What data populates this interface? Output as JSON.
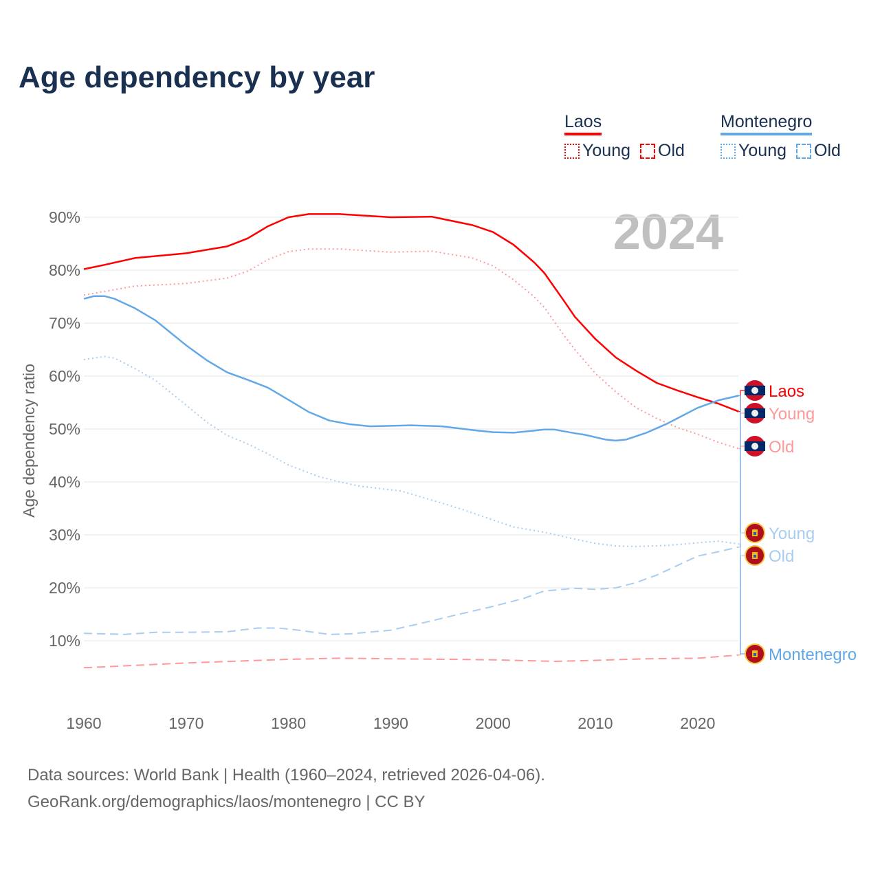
{
  "title": "Age dependency by year",
  "legend": {
    "groups": [
      {
        "name": "Laos",
        "color": "#ff0000",
        "items": [
          {
            "label": "Young",
            "style": "dotted",
            "color": "#ff0000"
          },
          {
            "label": "Old",
            "style": "dashed",
            "color": "#ff0000"
          }
        ]
      },
      {
        "name": "Montenegro",
        "color": "#62a8e8",
        "items": [
          {
            "label": "Young",
            "style": "dotted",
            "color": "#62a8e8"
          },
          {
            "label": "Old",
            "style": "dashed",
            "color": "#62a8e8"
          }
        ]
      }
    ]
  },
  "footer": {
    "line1": "Data sources: World Bank | Health (1960–2024, retrieved 2026-04-06).",
    "line2": "GeoRank.org/demographics/laos/montenegro | CC BY"
  },
  "chart_data": {
    "type": "line",
    "title": "Age dependency by year",
    "year_watermark": "2024",
    "xlabel": "",
    "ylabel": "Age dependency ratio",
    "xlim": [
      1960,
      2024
    ],
    "ylim": [
      0,
      95
    ],
    "x_ticks": [
      "1960",
      "1970",
      "1980",
      "1990",
      "2000",
      "2010",
      "2020"
    ],
    "y_ticks": [
      "10%",
      "20%",
      "30%",
      "40%",
      "50%",
      "60%",
      "70%",
      "80%",
      "90%"
    ],
    "grid": true,
    "series": [
      {
        "name": "Laos",
        "end_label": "Laos",
        "flag": "laos",
        "color": "#ff0000",
        "style": "solid",
        "x": [
          1960,
          1962,
          1965,
          1970,
          1974,
          1976,
          1978,
          1980,
          1982,
          1985,
          1990,
          1994,
          1998,
          2000,
          2002,
          2004,
          2005,
          2007,
          2008,
          2010,
          2012,
          2014,
          2016,
          2018,
          2020,
          2022,
          2024
        ],
        "y": [
          80.2,
          81,
          82.3,
          83.2,
          84.5,
          86,
          88.3,
          90,
          90.6,
          90.6,
          90.0,
          90.1,
          88.5,
          87.2,
          84.8,
          81.5,
          79.5,
          74,
          71.2,
          67,
          63.5,
          61,
          58.7,
          57.3,
          56,
          54.8,
          53.3
        ]
      },
      {
        "name": "Laos Young",
        "end_label": "Young",
        "flag": "laos",
        "color": "#ff9999",
        "style": "dotted",
        "x": [
          1960,
          1965,
          1970,
          1974,
          1976,
          1978,
          1980,
          1982,
          1985,
          1990,
          1994,
          1998,
          2000,
          2002,
          2004,
          2005,
          2007,
          2008,
          2010,
          2012,
          2014,
          2016,
          2018,
          2020,
          2022,
          2024
        ],
        "y": [
          75.3,
          77,
          77.5,
          78.5,
          79.8,
          82,
          83.5,
          84,
          84,
          83.4,
          83.6,
          82.3,
          80.8,
          78.2,
          75,
          73,
          67.5,
          65,
          60.5,
          57,
          54,
          52,
          50.3,
          49,
          47.5,
          46.3
        ]
      },
      {
        "name": "Laos Old",
        "end_label": "Old",
        "flag": "laos",
        "color": "#ff9999",
        "style": "dashed",
        "x": [
          1960,
          1970,
          1980,
          1985,
          1990,
          2000,
          2006,
          2010,
          2015,
          2020,
          2024
        ],
        "y": [
          4.9,
          5.8,
          6.5,
          6.7,
          6.6,
          6.4,
          6.1,
          6.3,
          6.6,
          6.7,
          7.3
        ]
      },
      {
        "name": "Montenegro",
        "end_label": "Montenegro",
        "flag": "montenegro",
        "color": "#62a8e8",
        "style": "solid",
        "x": [
          1960,
          1961,
          1962,
          1963,
          1965,
          1967,
          1970,
          1972,
          1974,
          1976,
          1978,
          1980,
          1982,
          1984,
          1986,
          1988,
          1990,
          1992,
          1995,
          1998,
          2000,
          2002,
          2005,
          2006,
          2008,
          2009,
          2011,
          2012,
          2013,
          2015,
          2017,
          2018,
          2020,
          2022,
          2024
        ],
        "y": [
          74.6,
          75.1,
          75.1,
          74.6,
          72.8,
          70.5,
          65.8,
          63,
          60.7,
          59.3,
          57.8,
          55.5,
          53.2,
          51.6,
          50.9,
          50.5,
          50.6,
          50.7,
          50.5,
          49.8,
          49.4,
          49.3,
          49.9,
          49.9,
          49.2,
          48.9,
          48,
          47.8,
          48,
          49.3,
          51,
          52,
          54,
          55.4,
          56.3
        ]
      },
      {
        "name": "Montenegro Young",
        "end_label": "Young",
        "flag": "montenegro",
        "color": "#a9cdf0",
        "style": "dotted",
        "x": [
          1960,
          1962,
          1963,
          1965,
          1967,
          1970,
          1972,
          1974,
          1976,
          1978,
          1980,
          1983,
          1985,
          1987,
          1990,
          1991,
          1995,
          1997,
          2000,
          2002,
          2005,
          2008,
          2010,
          2012,
          2014,
          2017,
          2020,
          2022,
          2024
        ],
        "y": [
          63.1,
          63.7,
          63.4,
          61.4,
          59.2,
          54.5,
          51.3,
          48.8,
          47.2,
          45.3,
          43.2,
          41,
          40,
          39.2,
          38.5,
          38.3,
          36,
          34.8,
          32.8,
          31.5,
          30.5,
          29.2,
          28.4,
          27.9,
          27.8,
          28,
          28.5,
          28.8,
          28.3
        ]
      },
      {
        "name": "Montenegro Old",
        "end_label": "Old",
        "flag": "montenegro",
        "color": "#a9cdf0",
        "style": "dashed",
        "x": [
          1960,
          1964,
          1967,
          1970,
          1974,
          1977,
          1979,
          1981,
          1984,
          1986,
          1990,
          1993,
          1996,
          2000,
          2003,
          2005,
          2008,
          2010,
          2012,
          2014,
          2016,
          2018,
          2020,
          2022,
          2024
        ],
        "y": [
          11.4,
          11.2,
          11.6,
          11.6,
          11.7,
          12.4,
          12.4,
          12,
          11.2,
          11.3,
          12,
          13.3,
          14.7,
          16.5,
          18,
          19.4,
          19.9,
          19.7,
          20,
          21,
          22.4,
          24.2,
          26,
          26.8,
          27.7
        ]
      }
    ]
  }
}
